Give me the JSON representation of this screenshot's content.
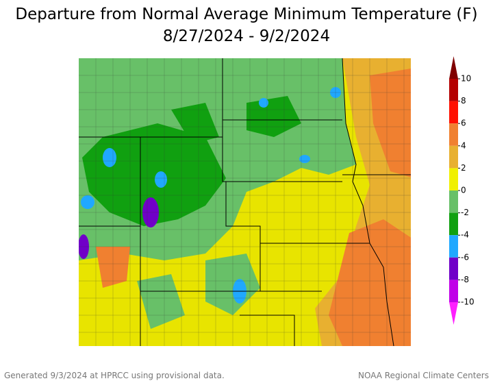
{
  "title": "Departure from Normal Average Minimum Temperature (F)",
  "subtitle": "8/27/2024 - 9/2/2024",
  "colorbar": {
    "ticks": [
      10,
      8,
      6,
      4,
      2,
      0,
      -2,
      -4,
      -6,
      -8,
      -10
    ],
    "colors": [
      "#b40000",
      "#ff1000",
      "#f08030",
      "#e8b030",
      "#f0f000",
      "#68c068",
      "#10a010",
      "#20a8ff",
      "#7000c8",
      "#c000e8"
    ],
    "above_color": "#800000",
    "below_color": "#ff20ff"
  },
  "footer": {
    "left": "Generated 9/3/2024 at HPRCC using provisional data.",
    "right": "NOAA Regional Climate Centers"
  }
}
